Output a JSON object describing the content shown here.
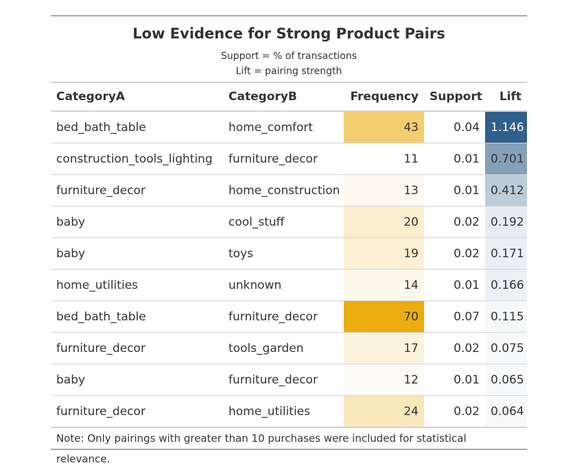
{
  "chart_data": {
    "type": "table",
    "title": "Low Evidence for Strong Product Pairs",
    "subtitle_lines": [
      "Support = % of transactions",
      "Lift = pairing strength"
    ],
    "columns": [
      "CategoryA",
      "CategoryB",
      "Frequency",
      "Support",
      "Lift"
    ],
    "rows": [
      {
        "category_a": "bed_bath_table",
        "category_b": "home_comfort",
        "frequency": "43",
        "support": "0.04",
        "lift": "1.146"
      },
      {
        "category_a": "construction_tools_lighting",
        "category_b": "furniture_decor",
        "frequency": "11",
        "support": "0.01",
        "lift": "0.701"
      },
      {
        "category_a": "furniture_decor",
        "category_b": "home_construction",
        "frequency": "13",
        "support": "0.01",
        "lift": "0.412"
      },
      {
        "category_a": "baby",
        "category_b": "cool_stuff",
        "frequency": "20",
        "support": "0.02",
        "lift": "0.192"
      },
      {
        "category_a": "baby",
        "category_b": "toys",
        "frequency": "19",
        "support": "0.02",
        "lift": "0.171"
      },
      {
        "category_a": "home_utilities",
        "category_b": "unknown",
        "frequency": "14",
        "support": "0.01",
        "lift": "0.166"
      },
      {
        "category_a": "bed_bath_table",
        "category_b": "furniture_decor",
        "frequency": "70",
        "support": "0.07",
        "lift": "0.115"
      },
      {
        "category_a": "furniture_decor",
        "category_b": "tools_garden",
        "frequency": "17",
        "support": "0.02",
        "lift": "0.075"
      },
      {
        "category_a": "baby",
        "category_b": "furniture_decor",
        "frequency": "12",
        "support": "0.01",
        "lift": "0.065"
      },
      {
        "category_a": "furniture_decor",
        "category_b": "home_utilities",
        "frequency": "24",
        "support": "0.02",
        "lift": "0.064"
      }
    ],
    "note": "Note: Only pairings with greater than 10 purchases were included for statistical relevance.",
    "frequency_color_scale": {
      "low": "#ffffff",
      "high": "#EAAC0E",
      "min": 11,
      "max": 70
    },
    "lift_color_scale": {
      "low": "#ffffff",
      "high": "#2F5F8A",
      "min": 0.064,
      "max": 1.146
    }
  }
}
